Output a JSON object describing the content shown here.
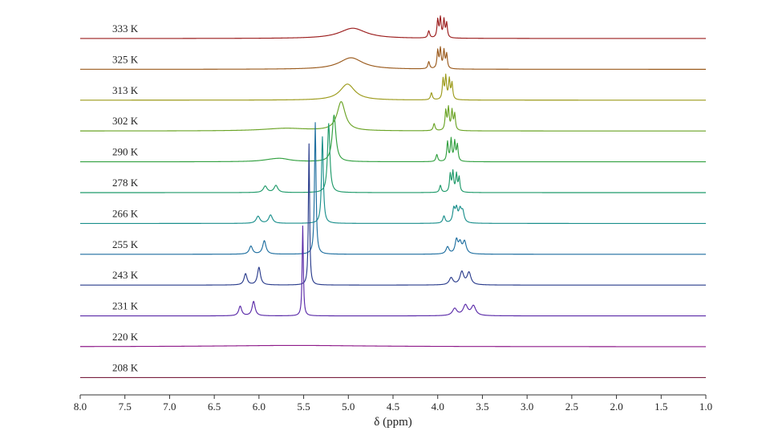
{
  "chart_data": {
    "type": "line",
    "xlabel": "δ (ppm)",
    "xlim": [
      8.0,
      1.0
    ],
    "x_reversed": true,
    "xticks": [
      "8.0",
      "7.5",
      "7.0",
      "6.5",
      "6.0",
      "5.5",
      "5.0",
      "4.5",
      "4.0",
      "3.5",
      "3.0",
      "2.5",
      "2.0",
      "1.5",
      "1.0"
    ],
    "grid": false,
    "series": [
      {
        "name": "333 K",
        "color": "#9b1c1c",
        "broad": [
          [
            4.95,
            0.18,
            0.32
          ]
        ],
        "peaks": [
          [
            4.1,
            0.012,
            0.22
          ],
          [
            4.0,
            0.01,
            0.55
          ],
          [
            3.97,
            0.01,
            0.6
          ],
          [
            3.93,
            0.01,
            0.55
          ],
          [
            3.9,
            0.01,
            0.45
          ]
        ]
      },
      {
        "name": "325 K",
        "color": "#9a5a1c",
        "broad": [
          [
            4.97,
            0.16,
            0.36
          ]
        ],
        "peaks": [
          [
            4.1,
            0.012,
            0.22
          ],
          [
            4.0,
            0.01,
            0.55
          ],
          [
            3.97,
            0.01,
            0.6
          ],
          [
            3.93,
            0.01,
            0.55
          ],
          [
            3.9,
            0.01,
            0.45
          ]
        ]
      },
      {
        "name": "313 K",
        "color": "#9c9a1a",
        "broad": [
          [
            5.01,
            0.1,
            0.5
          ]
        ],
        "peaks": [
          [
            4.07,
            0.012,
            0.22
          ],
          [
            3.94,
            0.01,
            0.62
          ],
          [
            3.91,
            0.01,
            0.7
          ],
          [
            3.87,
            0.01,
            0.62
          ],
          [
            3.84,
            0.01,
            0.5
          ]
        ]
      },
      {
        "name": "302 K",
        "color": "#6aa325",
        "broad": [
          [
            5.08,
            0.055,
            0.9
          ],
          [
            5.7,
            0.3,
            0.08
          ]
        ],
        "peaks": [
          [
            4.04,
            0.012,
            0.22
          ],
          [
            3.91,
            0.01,
            0.6
          ],
          [
            3.88,
            0.01,
            0.68
          ],
          [
            3.84,
            0.01,
            0.6
          ],
          [
            3.81,
            0.01,
            0.5
          ]
        ]
      },
      {
        "name": "290 K",
        "color": "#32a040",
        "broad": [
          [
            5.16,
            0.025,
            1.45
          ],
          [
            5.75,
            0.12,
            0.07
          ],
          [
            5.85,
            0.15,
            0.05
          ]
        ],
        "peaks": [
          [
            4.01,
            0.012,
            0.22
          ],
          [
            3.89,
            0.01,
            0.6
          ],
          [
            3.85,
            0.01,
            0.68
          ],
          [
            3.81,
            0.01,
            0.6
          ],
          [
            3.78,
            0.01,
            0.5
          ]
        ]
      },
      {
        "name": "278 K",
        "color": "#1f9a6a",
        "broad": [
          [
            5.22,
            0.016,
            2.15
          ]
        ],
        "peaks": [
          [
            5.93,
            0.025,
            0.2
          ],
          [
            5.81,
            0.025,
            0.22
          ],
          [
            3.97,
            0.012,
            0.22
          ],
          [
            3.86,
            0.01,
            0.55
          ],
          [
            3.83,
            0.01,
            0.62
          ],
          [
            3.79,
            0.01,
            0.55
          ],
          [
            3.76,
            0.01,
            0.45
          ]
        ]
      },
      {
        "name": "266 K",
        "color": "#1a8f8c",
        "broad": [
          [
            5.29,
            0.012,
            2.7
          ]
        ],
        "peaks": [
          [
            6.01,
            0.025,
            0.22
          ],
          [
            5.87,
            0.025,
            0.26
          ],
          [
            3.93,
            0.015,
            0.22
          ],
          [
            3.82,
            0.015,
            0.42
          ],
          [
            3.79,
            0.015,
            0.4
          ],
          [
            3.75,
            0.018,
            0.38
          ],
          [
            3.72,
            0.018,
            0.33
          ]
        ]
      },
      {
        "name": "255 K",
        "color": "#1f6fa0",
        "broad": [
          [
            5.37,
            0.01,
            4.1
          ]
        ],
        "peaks": [
          [
            6.09,
            0.022,
            0.25
          ],
          [
            5.94,
            0.022,
            0.42
          ],
          [
            3.89,
            0.02,
            0.22
          ],
          [
            3.79,
            0.018,
            0.42
          ],
          [
            3.75,
            0.02,
            0.32
          ],
          [
            3.7,
            0.022,
            0.38
          ]
        ]
      },
      {
        "name": "243 K",
        "color": "#2a3c8c",
        "broad": [
          [
            5.44,
            0.008,
            4.4
          ]
        ],
        "peaks": [
          [
            6.15,
            0.02,
            0.35
          ],
          [
            6.0,
            0.02,
            0.55
          ],
          [
            3.85,
            0.025,
            0.22
          ],
          [
            3.73,
            0.025,
            0.4
          ],
          [
            3.65,
            0.025,
            0.38
          ]
        ]
      },
      {
        "name": "231 K",
        "color": "#5a2aa8",
        "broad": [
          [
            5.51,
            0.008,
            2.8
          ]
        ],
        "peaks": [
          [
            6.21,
            0.02,
            0.3
          ],
          [
            6.06,
            0.02,
            0.45
          ],
          [
            3.81,
            0.03,
            0.22
          ],
          [
            3.69,
            0.03,
            0.32
          ],
          [
            3.6,
            0.03,
            0.3
          ]
        ]
      },
      {
        "name": "220 K",
        "color": "#8e1a8a",
        "broad": [
          [
            5.6,
            1.0,
            0.04
          ]
        ],
        "peaks": []
      },
      {
        "name": "208 K",
        "color": "#7a2040",
        "broad": [],
        "peaks": []
      }
    ]
  }
}
